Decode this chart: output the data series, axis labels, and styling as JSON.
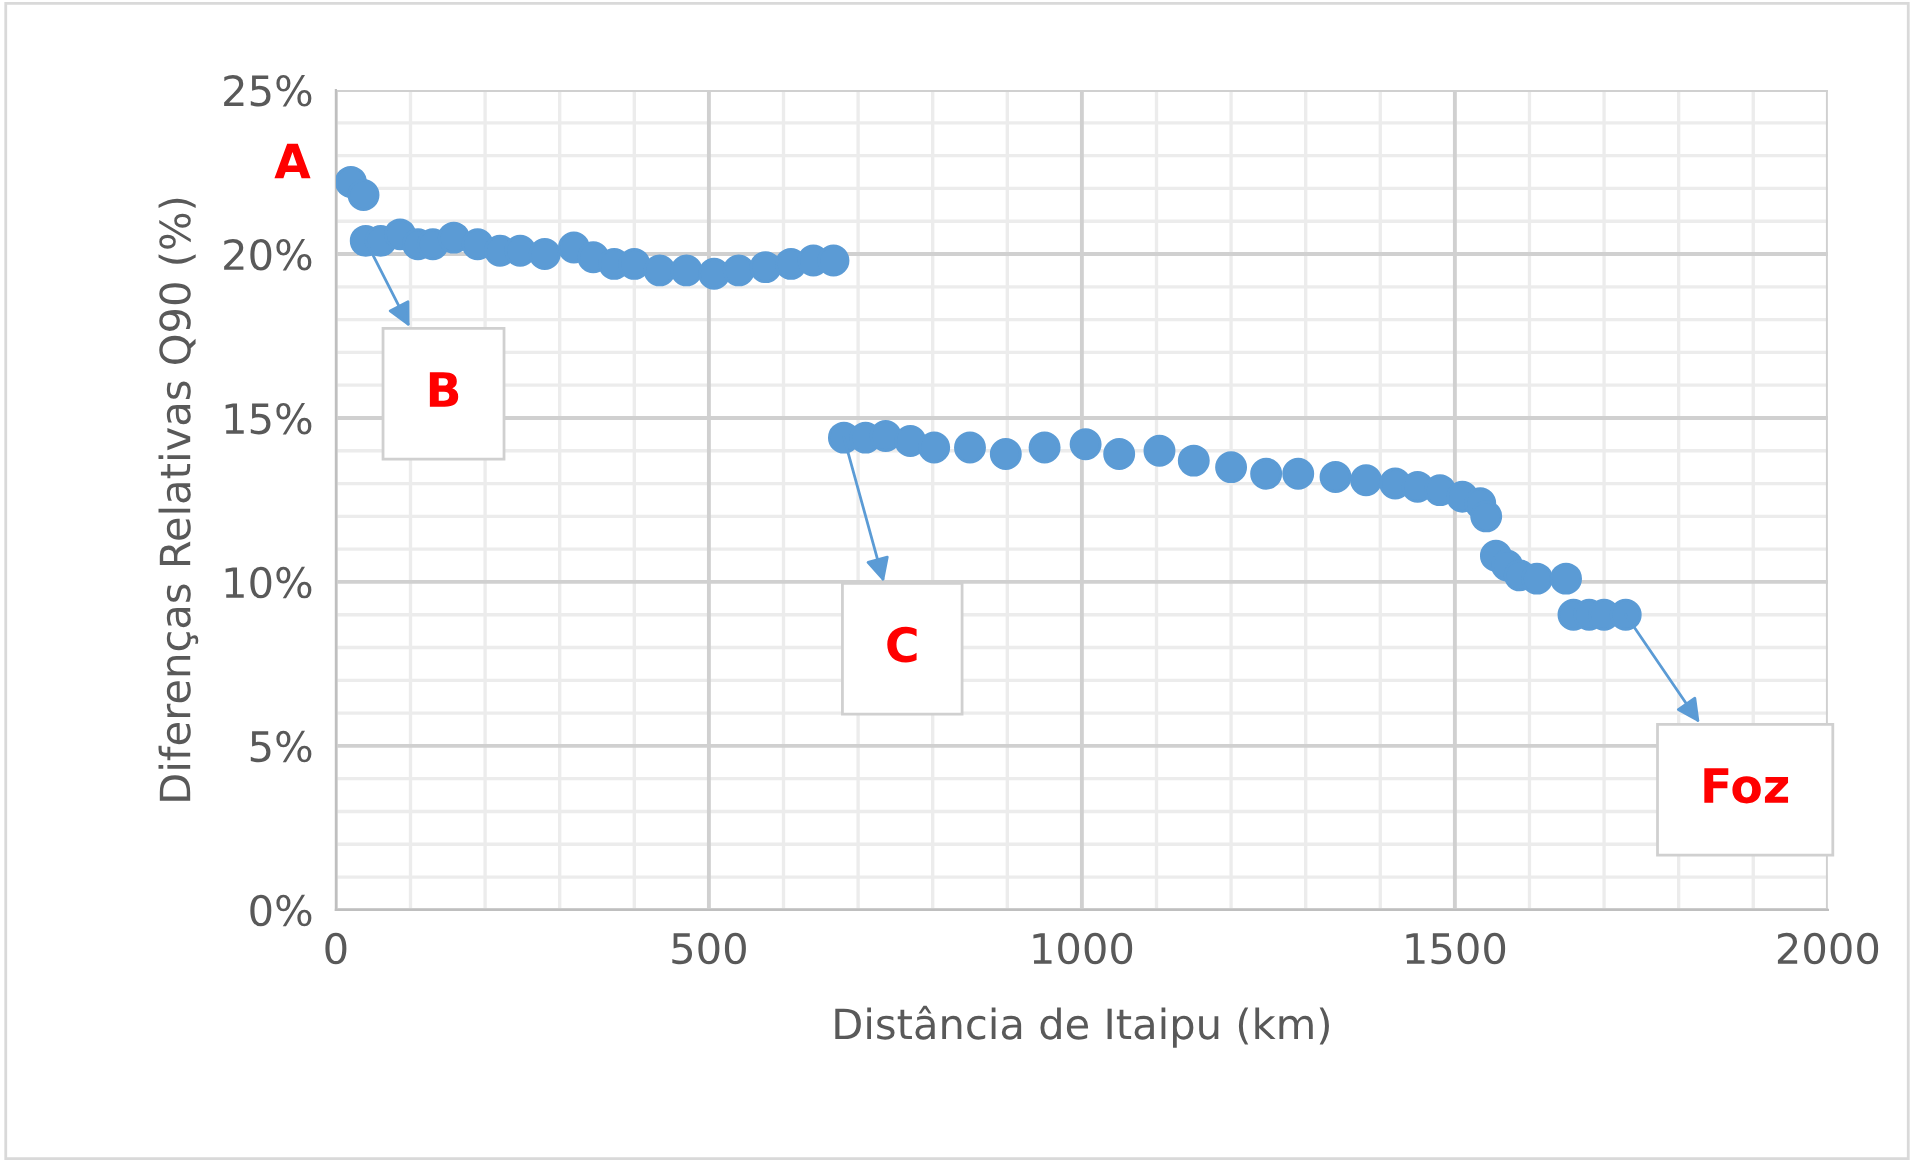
{
  "chart_data": {
    "type": "scatter",
    "xlabel": "Distância de Itaipu (km)",
    "ylabel": "Diferenças Relativas Q90 (%)",
    "xlim": [
      0,
      2000
    ],
    "xticks": [
      0,
      500,
      1000,
      1500,
      2000
    ],
    "ylim": [
      0,
      25
    ],
    "yticks": [
      {
        "value": 0,
        "label": "0%"
      },
      {
        "value": 5,
        "label": "5%"
      },
      {
        "value": 10,
        "label": "10%"
      },
      {
        "value": 15,
        "label": "15%"
      },
      {
        "value": 20,
        "label": "20%"
      },
      {
        "value": 25,
        "label": "25%"
      }
    ],
    "grid": true,
    "marker": "circle",
    "legend": false,
    "series": [
      {
        "color": "#5b9bd5",
        "x": [
          20,
          37,
          40,
          60,
          86,
          110,
          130,
          158,
          190,
          220,
          247,
          280,
          319,
          345,
          373,
          400,
          434,
          470,
          507,
          540,
          576,
          610,
          640,
          667,
          681,
          710,
          737,
          770,
          802,
          850,
          898,
          950,
          1005,
          1050,
          1104,
          1150,
          1200,
          1247,
          1290,
          1340,
          1381,
          1420,
          1450,
          1480,
          1510,
          1534,
          1542,
          1555,
          1570,
          1587,
          1610,
          1649,
          1659,
          1680,
          1700,
          1729
        ],
        "values": [
          22.2,
          21.8,
          20.4,
          20.4,
          20.6,
          20.3,
          20.3,
          20.5,
          20.3,
          20.1,
          20.1,
          20.0,
          20.2,
          19.9,
          19.7,
          19.7,
          19.5,
          19.5,
          19.4,
          19.5,
          19.6,
          19.7,
          19.8,
          19.8,
          14.4,
          14.4,
          14.45,
          14.3,
          14.1,
          14.1,
          13.9,
          14.1,
          14.2,
          13.9,
          14.0,
          13.7,
          13.5,
          13.3,
          13.3,
          13.2,
          13.1,
          13.0,
          12.9,
          12.8,
          12.6,
          12.4,
          12.0,
          10.8,
          10.5,
          10.2,
          10.1,
          10.1,
          9.0,
          9.0,
          9.0,
          9.0
        ]
      }
    ],
    "annotations": [
      {
        "text": "A",
        "x": 20,
        "y": 22.2
      },
      {
        "text": "B",
        "x": 40,
        "y": 20.4
      },
      {
        "text": "C",
        "x": 681,
        "y": 14.4
      },
      {
        "text": "Foz",
        "x": 1729,
        "y": 9.0
      }
    ]
  }
}
